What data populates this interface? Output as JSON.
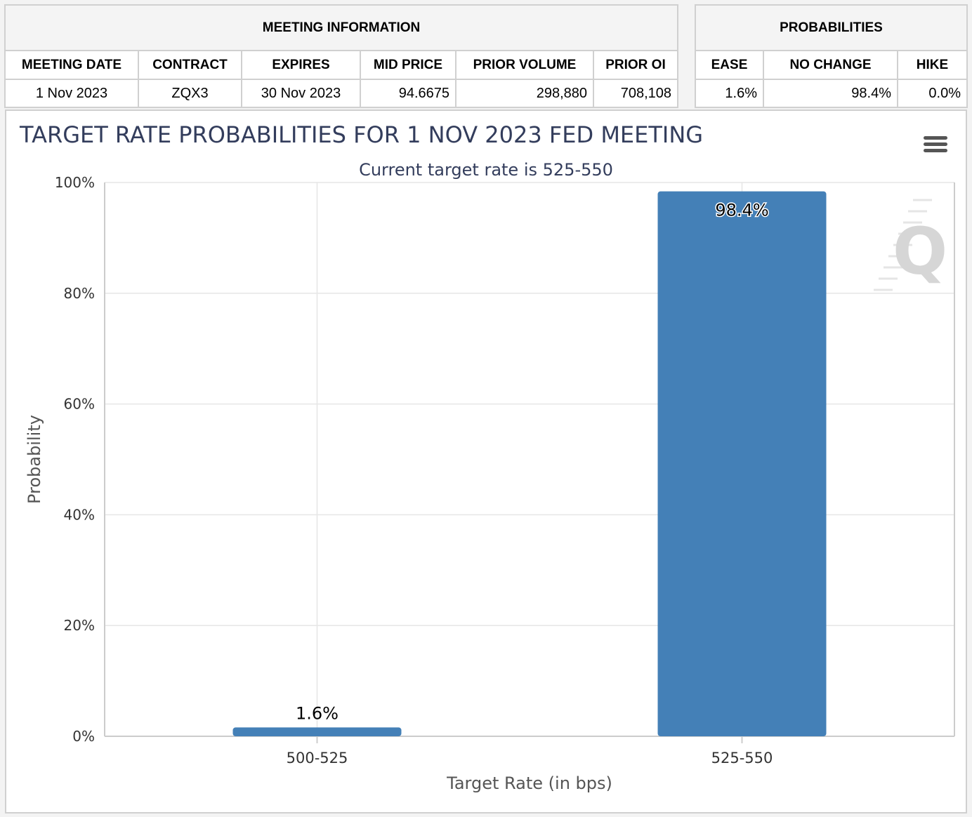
{
  "meeting_info": {
    "title": "MEETING INFORMATION",
    "columns": [
      "MEETING DATE",
      "CONTRACT",
      "EXPIRES",
      "MID PRICE",
      "PRIOR VOLUME",
      "PRIOR OI"
    ],
    "row": [
      "1 Nov 2023",
      "ZQX3",
      "30 Nov 2023",
      "94.6675",
      "298,880",
      "708,108"
    ]
  },
  "probabilities": {
    "title": "PROBABILITIES",
    "columns": [
      "EASE",
      "NO CHANGE",
      "HIKE"
    ],
    "row": [
      "1.6%",
      "98.4%",
      "0.0%"
    ]
  },
  "menu_icon": "hamburger-menu-icon",
  "watermark_icon": "q-logo-watermark",
  "chart_data": {
    "type": "bar",
    "title": "TARGET RATE PROBABILITIES FOR 1 NOV 2023 FED MEETING",
    "subtitle": "Current target rate is 525-550",
    "xlabel": "Target Rate (in bps)",
    "ylabel": "Probability",
    "categories": [
      "500-525",
      "525-550"
    ],
    "values": [
      1.6,
      98.4
    ],
    "data_labels": [
      "1.6%",
      "98.4%"
    ],
    "ylim": [
      0,
      100
    ],
    "yticks": [
      0,
      20,
      40,
      60,
      80,
      100
    ],
    "ytick_labels": [
      "0%",
      "20%",
      "40%",
      "60%",
      "80%",
      "100%"
    ],
    "grid": true,
    "colors": {
      "bar": "#4480b7",
      "title": "#333d5c",
      "axis_text": "#333333",
      "grid": "#e6e6e6"
    }
  }
}
